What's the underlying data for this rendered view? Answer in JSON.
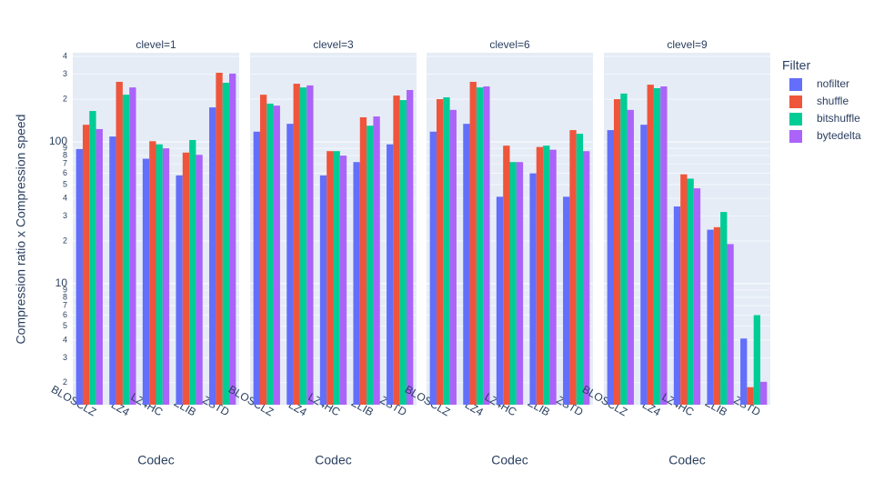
{
  "chart_data": {
    "type": "bar",
    "log_y": true,
    "grid": true,
    "y_label": "Compression ratio x Compression speed",
    "x_label": "Codec",
    "legend_title": "Filter",
    "legend_position": "right",
    "facets": [
      "clevel=1",
      "clevel=3",
      "clevel=6",
      "clevel=9"
    ],
    "categories": [
      "BLOSCLZ",
      "LZ4",
      "LZ4HC",
      "ZLIB",
      "ZSTD"
    ],
    "ylim": [
      1.4,
      425
    ],
    "yticks": [
      2,
      3,
      4,
      5,
      6,
      7,
      8,
      9,
      10,
      {
        "value": 20,
        "label": "2"
      },
      {
        "value": 30,
        "label": "3"
      },
      {
        "value": 40,
        "label": "4"
      },
      {
        "value": 50,
        "label": "5"
      },
      {
        "value": 60,
        "label": "6"
      },
      {
        "value": 70,
        "label": "7"
      },
      {
        "value": 80,
        "label": "8"
      },
      {
        "value": 90,
        "label": "9"
      },
      100,
      {
        "value": 200,
        "label": "2"
      },
      {
        "value": 300,
        "label": "3"
      },
      {
        "value": 400,
        "label": "4"
      }
    ],
    "series": [
      {
        "name": "nofilter",
        "color": "#636efa",
        "values": [
          [
            89,
            109,
            76,
            58,
            175
          ],
          [
            118,
            134,
            58,
            72,
            96
          ],
          [
            118,
            134,
            41,
            60,
            41
          ],
          [
            121,
            132,
            35,
            24,
            4.1
          ]
        ]
      },
      {
        "name": "shuffle",
        "color": "#ef553b",
        "values": [
          [
            132,
            265,
            101,
            84,
            307
          ],
          [
            215,
            257,
            86,
            149,
            212
          ],
          [
            200,
            265,
            94,
            92,
            121
          ],
          [
            200,
            253,
            59,
            25,
            1.86
          ]
        ]
      },
      {
        "name": "bitshuffle",
        "color": "#00cc96",
        "values": [
          [
            165,
            215,
            96,
            103,
            261
          ],
          [
            186,
            242,
            86,
            130,
            197
          ],
          [
            206,
            242,
            72,
            94,
            114
          ],
          [
            219,
            239,
            55,
            32,
            6.0
          ]
        ]
      },
      {
        "name": "bytedelta",
        "color": "#ab63fa",
        "values": [
          [
            123,
            242,
            90,
            81,
            303
          ],
          [
            180,
            250,
            80,
            151,
            232
          ],
          [
            168,
            246,
            72,
            88,
            86
          ],
          [
            168,
            246,
            47,
            19,
            2.03
          ]
        ]
      }
    ]
  }
}
